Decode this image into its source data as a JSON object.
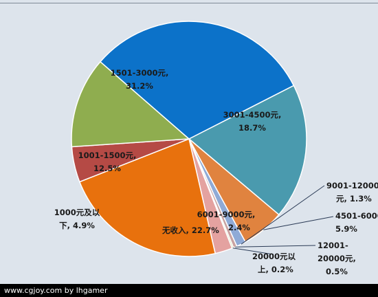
{
  "chart_data": {
    "type": "pie",
    "title": "",
    "slices": [
      {
        "label": "3001-4500元,",
        "value_text": "18.7%",
        "value": 18.7,
        "color": "#4a9aae"
      },
      {
        "label": "4501-6000元",
        "value_text": "5.9%",
        "value": 5.9,
        "color": "#e0833f"
      },
      {
        "label": "9001-12000元,",
        "value_text": "1.3%",
        "value": 1.3,
        "color": "#8faad6"
      },
      {
        "label": "12001-20000元,",
        "value_text": "0.5%",
        "value": 0.5,
        "color": "#c9a3a1"
      },
      {
        "label": "20000元以上,",
        "value_text": "0.2%",
        "value": 0.2,
        "color": "#c5d89a"
      },
      {
        "label": "6001-9000元,",
        "value_text": "2.4%",
        "value": 2.4,
        "color": "#e4a2a0"
      },
      {
        "label": "无收入,",
        "value_text": "22.7%",
        "value": 22.7,
        "color": "#e8710d"
      },
      {
        "label": "1000元及以下,",
        "value_text": "4.9%",
        "value": 4.9,
        "color": "#b54a45"
      },
      {
        "label": "1001-1500元,",
        "value_text": "12.5%",
        "value": 12.5,
        "color": "#8fad4f"
      },
      {
        "label": "1501-3000元,",
        "value_text": "31.2%",
        "value": 31.2,
        "color": "#0c72c9"
      }
    ],
    "start_angle_deg": -27
  },
  "watermark": "www.cgjoy.com by lhgamer"
}
